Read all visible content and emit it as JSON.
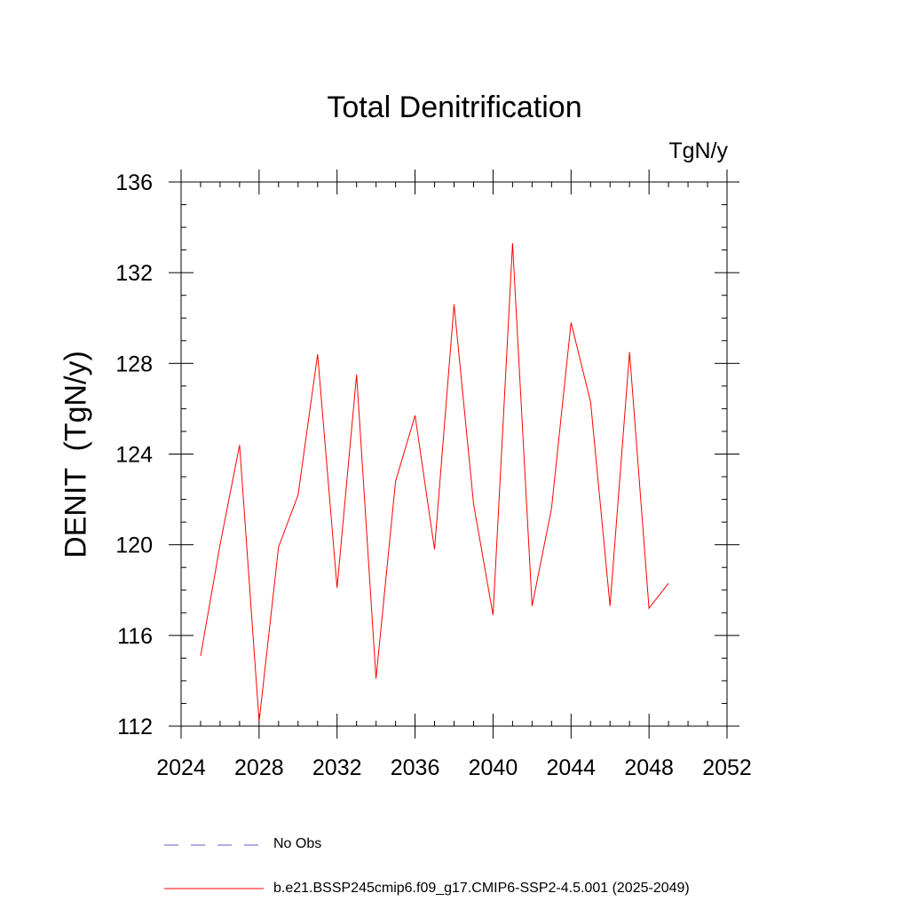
{
  "chart_data": {
    "type": "line",
    "title": "Total Denitrification",
    "units": "TgN/y",
    "ylabel": "DENIT  (TgN/y)",
    "xlabel": "",
    "xlim": [
      2024,
      2052
    ],
    "ylim": [
      112,
      136
    ],
    "x_ticks": [
      "2024",
      "2028",
      "2032",
      "2036",
      "2040",
      "2044",
      "2048",
      "2052"
    ],
    "y_ticks": [
      "112",
      "116",
      "120",
      "124",
      "128",
      "132",
      "136"
    ],
    "x_tick_values": [
      2024,
      2028,
      2032,
      2036,
      2040,
      2044,
      2048,
      2052
    ],
    "y_tick_values": [
      112,
      116,
      120,
      124,
      128,
      132,
      136
    ],
    "grid": false,
    "legend_position": "bottom",
    "series": [
      {
        "name": "b.e21.BSSP245cmip6.f09_g17.CMIP6-SSP2-4.5.001 (2025-2049)",
        "color": "#ff0000",
        "style": "solid",
        "x": [
          2025,
          2026,
          2027,
          2028,
          2029,
          2030,
          2031,
          2032,
          2033,
          2034,
          2035,
          2036,
          2037,
          2038,
          2039,
          2040,
          2041,
          2042,
          2043,
          2044,
          2045,
          2046,
          2047,
          2048,
          2049
        ],
        "values": [
          115.1,
          120.0,
          124.4,
          112.2,
          119.9,
          122.2,
          128.4,
          118.1,
          127.5,
          114.1,
          122.8,
          125.7,
          119.8,
          130.6,
          121.8,
          116.9,
          133.3,
          117.3,
          121.6,
          129.8,
          126.3,
          117.3,
          128.5,
          117.2,
          118.3
        ]
      },
      {
        "name": "No Obs",
        "color": "#6a5acd",
        "style": "dashed",
        "x": [],
        "values": []
      }
    ]
  }
}
